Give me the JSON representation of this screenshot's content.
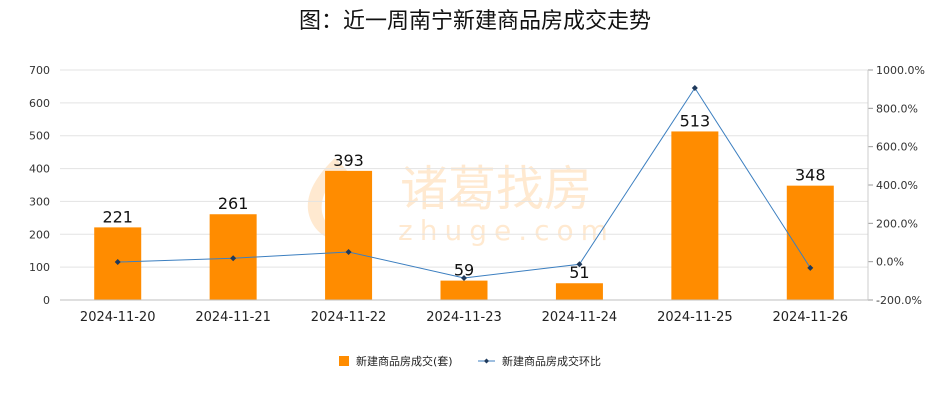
{
  "chart_data": {
    "type": "bar",
    "title": "图：近一周南宁新建商品房成交走势",
    "categories": [
      "2024-11-20",
      "2024-11-21",
      "2024-11-22",
      "2024-11-23",
      "2024-11-24",
      "2024-11-25",
      "2024-11-26"
    ],
    "series": [
      {
        "name": "新建商品房成交(套)",
        "type": "bar",
        "axis": "left",
        "color": "#FF8C00",
        "values": [
          221,
          261,
          393,
          59,
          51,
          513,
          348
        ]
      },
      {
        "name": "新建商品房成交环比",
        "type": "line",
        "axis": "right",
        "color": "#3C7FC0",
        "values": [
          -2.0,
          18.1,
          50.6,
          -85.0,
          -13.6,
          905.9,
          -32.2
        ]
      }
    ],
    "y_left": {
      "min": 0,
      "max": 700,
      "ticks": [
        "0",
        "100",
        "200",
        "300",
        "400",
        "500",
        "600",
        "700"
      ]
    },
    "y_right": {
      "min": -200,
      "max": 1000,
      "ticks": [
        "-200.0%",
        "0.0%",
        "200.0%",
        "400.0%",
        "600.0%",
        "800.0%",
        "1000.0%"
      ]
    },
    "grid": true,
    "legend": "bottom",
    "watermark": "诸葛找房 zhuge.com"
  }
}
